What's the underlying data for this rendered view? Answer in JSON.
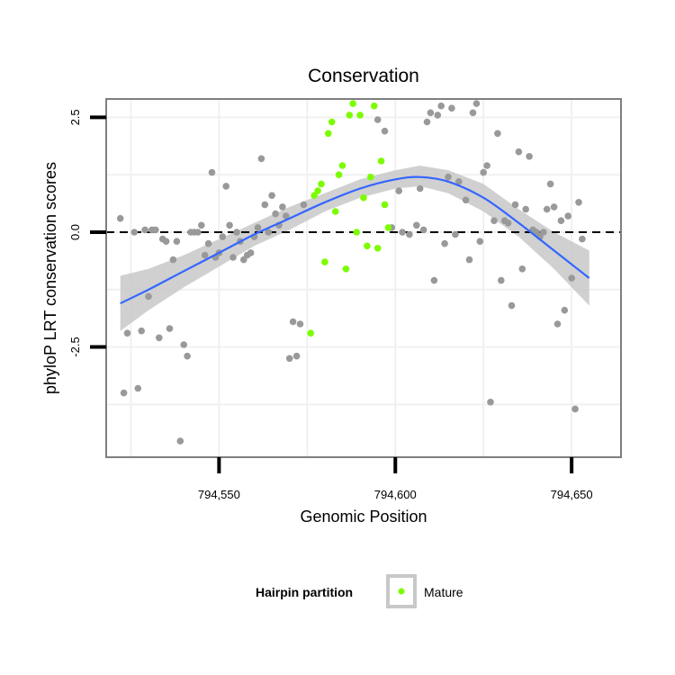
{
  "chart_data": {
    "type": "scatter",
    "title": "Conservation",
    "xlabel": "Genomic Position",
    "ylabel": "phyloP LRT conservation scores",
    "xlim": [
      794518,
      794664
    ],
    "ylim": [
      -4.9,
      2.9
    ],
    "x_ticks": [
      {
        "value": 794550,
        "label": "794,550"
      },
      {
        "value": 794600,
        "label": "794,600"
      },
      {
        "value": 794650,
        "label": "794,650"
      }
    ],
    "y_ticks": [
      {
        "value": -2.5,
        "label": "-2.5"
      },
      {
        "value": 0.0,
        "label": "0.0"
      },
      {
        "value": 2.5,
        "label": "2.5"
      }
    ],
    "grid": true,
    "reference_line": {
      "y": 0,
      "style": "dashed"
    },
    "colors": {
      "background_points": "#999999",
      "mature_points": "#7cfc00",
      "trend_line": "#3366ff",
      "confidence_band": "#c8c8c8",
      "grid": "#f0f0f0",
      "panel_border": "#7f7f7f"
    },
    "legend": {
      "title": "Hairpin partition",
      "placement": "bottom",
      "entries": [
        {
          "label": "Mature",
          "color": "#7cfc00"
        }
      ]
    },
    "series": [
      {
        "name": "",
        "color": "#999999",
        "points": [
          [
            794522,
            0.3
          ],
          [
            794523,
            -3.5
          ],
          [
            794524,
            -2.2
          ],
          [
            794526,
            0.0
          ],
          [
            794527,
            -3.4
          ],
          [
            794528,
            -2.15
          ],
          [
            794529,
            0.05
          ],
          [
            794530,
            -1.4
          ],
          [
            794531,
            0.05
          ],
          [
            794532,
            0.05
          ],
          [
            794533,
            -2.3
          ],
          [
            794534,
            -0.15
          ],
          [
            794535,
            -0.2
          ],
          [
            794536,
            -2.1
          ],
          [
            794537,
            -0.6
          ],
          [
            794538,
            -0.2
          ],
          [
            794539,
            -4.55
          ],
          [
            794540,
            -2.45
          ],
          [
            794541,
            -2.7
          ],
          [
            794542,
            0.0
          ],
          [
            794543,
            0.0
          ],
          [
            794544,
            0.0
          ],
          [
            794545,
            0.15
          ],
          [
            794546,
            -0.5
          ],
          [
            794547,
            -0.25
          ],
          [
            794548,
            1.3
          ],
          [
            794549,
            -0.55
          ],
          [
            794550,
            -0.45
          ],
          [
            794551,
            -0.1
          ],
          [
            794552,
            1.0
          ],
          [
            794553,
            0.15
          ],
          [
            794554,
            -0.55
          ],
          [
            794555,
            0.0
          ],
          [
            794556,
            -0.2
          ],
          [
            794557,
            -0.6
          ],
          [
            794558,
            -0.5
          ],
          [
            794559,
            -0.45
          ],
          [
            794560,
            -0.1
          ],
          [
            794561,
            0.1
          ],
          [
            794562,
            1.6
          ],
          [
            794563,
            0.6
          ],
          [
            794564,
            0.0
          ],
          [
            794565,
            0.8
          ],
          [
            794566,
            0.4
          ],
          [
            794567,
            0.15
          ],
          [
            794568,
            0.55
          ],
          [
            794569,
            0.35
          ],
          [
            794570,
            -2.75
          ],
          [
            794571,
            -1.95
          ],
          [
            794572,
            -2.7
          ],
          [
            794573,
            -2.0
          ],
          [
            794574,
            0.6
          ],
          [
            794595,
            2.45
          ],
          [
            794597,
            2.2
          ],
          [
            794599,
            0.1
          ],
          [
            794601,
            0.9
          ],
          [
            794602,
            0.0
          ],
          [
            794604,
            -0.05
          ],
          [
            794606,
            0.15
          ],
          [
            794607,
            0.95
          ],
          [
            794608,
            0.05
          ],
          [
            794609,
            2.4
          ],
          [
            794610,
            2.6
          ],
          [
            794611,
            -1.05
          ],
          [
            794612,
            2.55
          ],
          [
            794613,
            2.75
          ],
          [
            794614,
            -0.25
          ],
          [
            794615,
            1.2
          ],
          [
            794616,
            2.7
          ],
          [
            794617,
            -0.05
          ],
          [
            794618,
            1.1
          ],
          [
            794620,
            0.7
          ],
          [
            794621,
            -0.6
          ],
          [
            794622,
            2.6
          ],
          [
            794623,
            2.8
          ],
          [
            794624,
            -0.2
          ],
          [
            794625,
            1.3
          ],
          [
            794626,
            1.45
          ],
          [
            794627,
            -3.7
          ],
          [
            794628,
            0.25
          ],
          [
            794629,
            2.15
          ],
          [
            794630,
            -1.05
          ],
          [
            794631,
            0.25
          ],
          [
            794632,
            0.2
          ],
          [
            794633,
            -1.6
          ],
          [
            794634,
            0.6
          ],
          [
            794635,
            1.75
          ],
          [
            794636,
            -0.8
          ],
          [
            794637,
            0.5
          ],
          [
            794638,
            1.65
          ],
          [
            794639,
            0.05
          ],
          [
            794640,
            0.0
          ],
          [
            794641,
            -0.1
          ],
          [
            794642,
            0.0
          ],
          [
            794643,
            0.5
          ],
          [
            794644,
            1.05
          ],
          [
            794645,
            0.55
          ],
          [
            794646,
            -2.0
          ],
          [
            794647,
            0.25
          ],
          [
            794648,
            -1.7
          ],
          [
            794649,
            0.35
          ],
          [
            794650,
            -1.0
          ],
          [
            794651,
            -3.85
          ],
          [
            794652,
            0.65
          ],
          [
            794653,
            -0.15
          ]
        ]
      },
      {
        "name": "Mature",
        "color": "#7cfc00",
        "points": [
          [
            794576,
            -2.2
          ],
          [
            794577,
            0.8
          ],
          [
            794578,
            0.9
          ],
          [
            794579,
            1.05
          ],
          [
            794580,
            -0.65
          ],
          [
            794581,
            2.15
          ],
          [
            794582,
            2.4
          ],
          [
            794583,
            0.45
          ],
          [
            794584,
            1.25
          ],
          [
            794585,
            1.45
          ],
          [
            794586,
            -0.8
          ],
          [
            794587,
            2.55
          ],
          [
            794588,
            2.8
          ],
          [
            794589,
            0.0
          ],
          [
            794590,
            2.55
          ],
          [
            794591,
            0.75
          ],
          [
            794592,
            -0.3
          ],
          [
            794593,
            1.2
          ],
          [
            794594,
            2.75
          ],
          [
            794595,
            -0.35
          ],
          [
            794596,
            1.55
          ],
          [
            794597,
            0.6
          ],
          [
            794598,
            0.1
          ]
        ]
      }
    ],
    "smooth": {
      "name": "",
      "color": "#3366ff",
      "x": [
        794522,
        794530,
        794540,
        794550,
        794560,
        794570,
        794580,
        794590,
        794600,
        794607,
        794615,
        794625,
        794635,
        794645,
        794655
      ],
      "y": [
        -1.55,
        -1.25,
        -0.85,
        -0.45,
        -0.05,
        0.3,
        0.65,
        0.95,
        1.15,
        1.2,
        1.1,
        0.75,
        0.2,
        -0.4,
        -1.0
      ],
      "lower": [
        -2.15,
        -1.7,
        -1.2,
        -0.75,
        -0.3,
        0.05,
        0.45,
        0.75,
        0.95,
        1.0,
        0.85,
        0.45,
        -0.1,
        -0.8,
        -1.6
      ],
      "upper": [
        -0.95,
        -0.8,
        -0.5,
        -0.15,
        0.2,
        0.55,
        0.85,
        1.15,
        1.35,
        1.45,
        1.35,
        1.05,
        0.5,
        0.0,
        -0.4
      ]
    }
  }
}
